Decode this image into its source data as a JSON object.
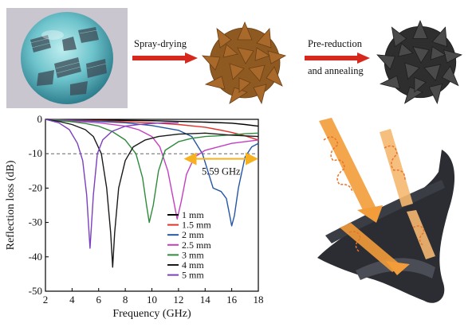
{
  "process": {
    "step1_label": "Spray-drying",
    "step2_label_line1": "Pre-reduction",
    "step2_label_line2": "and annealing",
    "arrow_color": "#d6281c",
    "precursor_color": "#a8692a",
    "product_color": "#3a3a3a",
    "droplet_color": "#6ec4cc"
  },
  "schematic": {
    "wave_color": "#f39c3a",
    "flake_color": "#2b2d33"
  },
  "chart_data": {
    "type": "line",
    "xlabel": "Frequency (GHz)",
    "ylabel": "Reflection loss (dB)",
    "xlim": [
      2,
      18
    ],
    "ylim": [
      -50,
      0
    ],
    "xticks": [
      2,
      4,
      6,
      8,
      10,
      12,
      14,
      16,
      18
    ],
    "yticks": [
      0,
      -10,
      -20,
      -30,
      -40,
      -50
    ],
    "reference_line": {
      "y": -10,
      "style": "dashed"
    },
    "bandwidth_annotation": {
      "text": "5.59 GHz",
      "x_start": 12.4,
      "x_end": 18,
      "y": -11.5,
      "color": "#f5b120"
    },
    "legend_position": "bottom-right",
    "series": [
      {
        "name": "1 mm",
        "color": "#000000",
        "x": [
          2,
          4,
          6,
          8,
          10,
          12,
          14,
          16,
          17,
          18
        ],
        "y": [
          0,
          -0.1,
          -0.2,
          -0.3,
          -0.4,
          -0.6,
          -0.8,
          -1.1,
          -1.5,
          -2
        ]
      },
      {
        "name": "1.5 mm",
        "color": "#e0342a",
        "x": [
          2,
          4,
          6,
          8,
          10,
          12,
          14,
          15,
          16,
          17,
          18
        ],
        "y": [
          0,
          -0.2,
          -0.4,
          -0.7,
          -1,
          -1.5,
          -2.3,
          -3,
          -3.8,
          -4.8,
          -6
        ]
      },
      {
        "name": "2 mm",
        "color": "#2456a6",
        "x": [
          2,
          4,
          6,
          8,
          10,
          12,
          13,
          13.8,
          14.6,
          15.2,
          15.6,
          15.8,
          16,
          16.2,
          16.5,
          17,
          17.5,
          18
        ],
        "y": [
          0,
          -0.3,
          -0.6,
          -1,
          -1.8,
          -3.2,
          -5,
          -10,
          -20,
          -21,
          -23,
          -27,
          -31,
          -28,
          -20,
          -11,
          -8,
          -7
        ]
      },
      {
        "name": "2.5 mm",
        "color": "#c43fc0",
        "x": [
          2,
          4,
          6,
          8,
          9,
          10,
          10.6,
          11.2,
          11.6,
          11.9,
          12.2,
          12.6,
          13.2,
          14,
          15,
          16,
          17,
          18
        ],
        "y": [
          0,
          -0.5,
          -1,
          -2,
          -3,
          -5,
          -8,
          -15,
          -23,
          -29,
          -24,
          -16,
          -11,
          -9,
          -8,
          -7,
          -6.5,
          -6
        ]
      },
      {
        "name": "3 mm",
        "color": "#2e8b3a",
        "x": [
          2,
          4,
          5,
          6,
          7,
          8,
          8.8,
          9.3,
          9.6,
          9.8,
          10.1,
          10.5,
          11,
          12,
          13,
          14,
          15,
          16,
          17,
          18
        ],
        "y": [
          0,
          -0.7,
          -1.2,
          -2,
          -3.5,
          -6,
          -10,
          -17,
          -25,
          -30,
          -25,
          -15,
          -9,
          -6.5,
          -5.5,
          -5,
          -4.8,
          -4.5,
          -4.2,
          -4
        ]
      },
      {
        "name": "4 mm",
        "color": "#1a1a1a",
        "x": [
          2,
          3,
          4,
          5,
          5.6,
          6.2,
          6.6,
          6.9,
          7.05,
          7.2,
          7.5,
          8,
          8.6,
          9.5,
          10.5,
          12,
          14,
          16,
          18
        ],
        "y": [
          0,
          -0.6,
          -1.5,
          -3,
          -5,
          -10,
          -20,
          -33,
          -43,
          -33,
          -20,
          -12,
          -8,
          -6,
          -5,
          -4.3,
          -4,
          -4.6,
          -5
        ]
      },
      {
        "name": "5 mm",
        "color": "#7b3fbf",
        "x": [
          2,
          3,
          3.8,
          4.4,
          4.8,
          5.1,
          5.35,
          5.6,
          5.9,
          6.3,
          7,
          8,
          9,
          10,
          11,
          12
        ],
        "y": [
          0,
          -1,
          -3,
          -7,
          -12,
          -22,
          -37.5,
          -22,
          -10,
          -6,
          -3.5,
          -2,
          -1.5,
          -1.2,
          -1,
          -1
        ]
      }
    ]
  }
}
